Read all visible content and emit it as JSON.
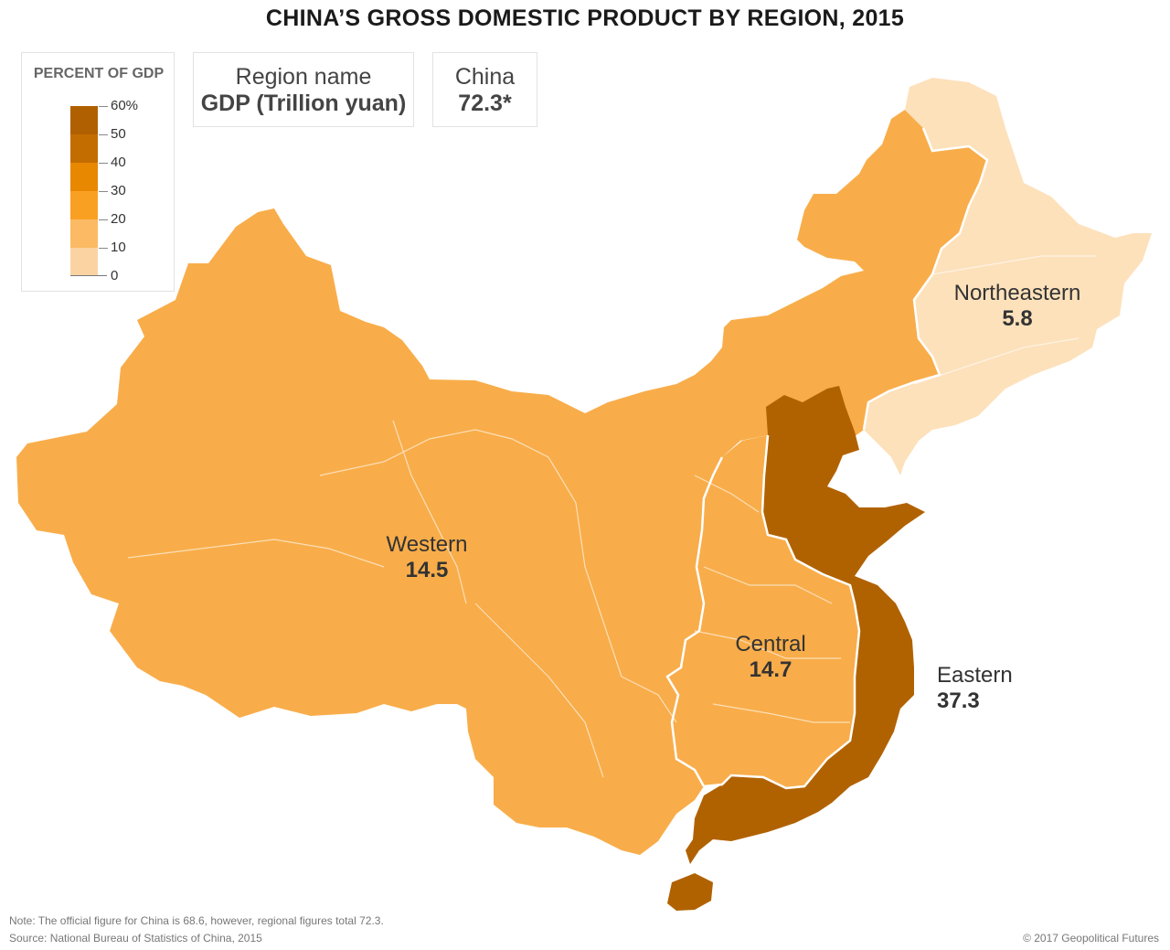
{
  "title": "CHINA’S GROSS DOMESTIC PRODUCT BY REGION, 2015",
  "legend": {
    "title": "PERCENT OF GDP",
    "tick_labels": [
      "60%",
      "50",
      "40",
      "30",
      "20",
      "10",
      "0"
    ],
    "color_stops": [
      "#b06000",
      "#c36d00",
      "#e88700",
      "#f9a023",
      "#fbba63",
      "#fbd3a3"
    ]
  },
  "key": {
    "region_name": "Region name",
    "gdp_label": "GDP (Trillion yuan)",
    "china_name": "China",
    "china_value": "72.3*"
  },
  "regions": [
    {
      "name": "Western",
      "value": "14.5",
      "color": "#f8ad4a"
    },
    {
      "name": "Central",
      "value": "14.7",
      "color": "#f8ad4a"
    },
    {
      "name": "Eastern",
      "value": "37.3",
      "color": "#b16200"
    },
    {
      "name": "Northeastern",
      "value": "5.8",
      "color": "#fde1bb"
    }
  ],
  "note": "Note: The official figure for China is 68.6, however, regional figures total 72.3.",
  "source": "Source: National Bureau of Statistics of China, 2015",
  "credit": "© 2017 Geopolitical Futures"
}
